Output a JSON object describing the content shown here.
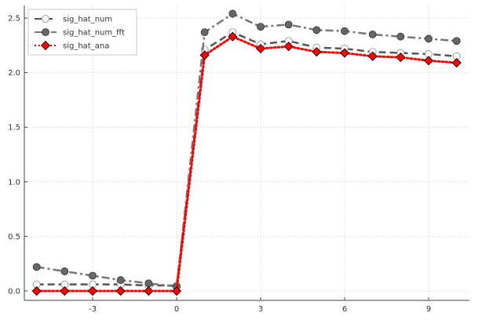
{
  "chart_data": {
    "type": "line",
    "title": "",
    "xlabel": "",
    "ylabel": "",
    "xlim": [
      -6,
      10.5
    ],
    "ylim": [
      -0.05,
      2.6
    ],
    "xticks": [
      -3,
      0,
      3,
      6,
      9
    ],
    "xtick_labels": [
      "-3",
      "0",
      "3",
      "6",
      "9"
    ],
    "yticks": [
      0.0,
      0.5,
      1.0,
      1.5,
      2.0,
      2.5
    ],
    "ytick_labels": [
      "0.0",
      "0.5",
      "1.0",
      "1.5",
      "2.0",
      "2.5"
    ],
    "grid": true,
    "legend_position": "top-left",
    "x": [
      -5,
      -4,
      -3,
      -2,
      -1,
      0,
      1,
      2,
      3,
      4,
      5,
      6,
      7,
      8,
      9,
      10
    ],
    "series": [
      {
        "name": "sig_hat_num",
        "color": "#555555",
        "marker_fill": "#ffffff",
        "marker": "circle",
        "line_style": "dashed",
        "values": [
          0.06,
          0.06,
          0.06,
          0.06,
          0.05,
          0.05,
          2.21,
          2.37,
          2.26,
          2.29,
          2.23,
          2.22,
          2.19,
          2.18,
          2.17,
          2.15
        ]
      },
      {
        "name": "sig_hat_num_fft",
        "color": "#777777",
        "marker_fill": "#666666",
        "marker": "circle",
        "line_style": "dashdot",
        "values": [
          0.22,
          0.18,
          0.14,
          0.1,
          0.07,
          0.04,
          2.37,
          2.54,
          2.42,
          2.44,
          2.39,
          2.38,
          2.35,
          2.33,
          2.31,
          2.29
        ]
      },
      {
        "name": "sig_hat_ana",
        "color": "#ff0000",
        "marker_fill": "#ff0000",
        "marker": "diamond",
        "line_style": "dotted",
        "values": [
          0.0,
          0.0,
          0.0,
          0.0,
          0.0,
          0.0,
          2.16,
          2.33,
          2.22,
          2.24,
          2.19,
          2.18,
          2.15,
          2.14,
          2.11,
          2.09
        ]
      }
    ]
  }
}
